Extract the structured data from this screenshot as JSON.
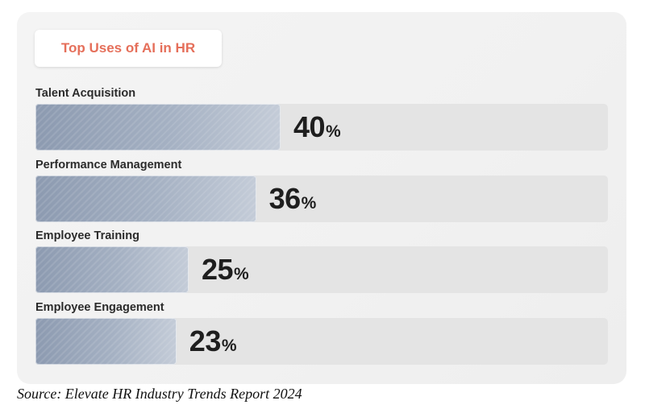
{
  "chart_data": {
    "type": "bar",
    "orientation": "horizontal",
    "title": "Top Uses of AI in HR",
    "categories": [
      "Talent Acquisition",
      "Performance Management",
      "Employee Training",
      "Employee Engagement"
    ],
    "values": [
      40,
      36,
      25,
      23
    ],
    "value_suffix": "%",
    "xlim": [
      0,
      100
    ],
    "grid": false,
    "legend": "none"
  },
  "source": "Source: Elevate HR Industry Trends Report 2024",
  "colors": {
    "title": "#e56f5a",
    "bar_fill": "#9aa7bb",
    "track": "#e4e4e4",
    "card": "#f2f2f2"
  }
}
